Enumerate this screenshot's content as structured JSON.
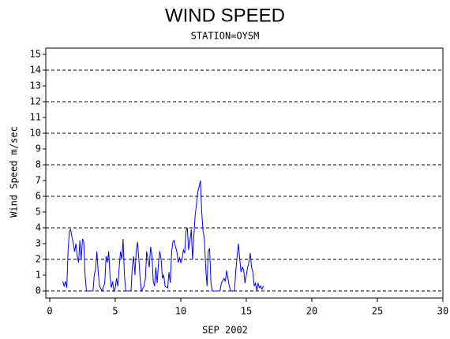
{
  "chart_data": {
    "type": "line",
    "title": "WIND SPEED",
    "subtitle": "STATION=OYSM",
    "x_label": "SEP 2002",
    "y_label": "Wind Speed m/sec",
    "xlim": [
      -0.3,
      30
    ],
    "xticks": [
      0,
      5,
      10,
      15,
      20,
      25,
      30
    ],
    "ylim": [
      -0.45,
      15.4
    ],
    "yticks": [
      0,
      1,
      2,
      3,
      4,
      5,
      6,
      7,
      8,
      9,
      10,
      11,
      12,
      13,
      14,
      15
    ],
    "ygrid": [
      0,
      2,
      4,
      6,
      8,
      10,
      12,
      14
    ],
    "series": [
      {
        "color": "#0000ff",
        "x": [
          1.0,
          1.1,
          1.2,
          1.3,
          1.4,
          1.5,
          1.6,
          1.7,
          1.8,
          1.9,
          2.0,
          2.1,
          2.2,
          2.3,
          2.4,
          2.5,
          2.6,
          2.7,
          2.8,
          3.3,
          3.4,
          3.5,
          3.6,
          3.7,
          3.8,
          4.0,
          4.2,
          4.3,
          4.4,
          4.5,
          4.6,
          4.7,
          4.8,
          4.9,
          5.0,
          5.1,
          5.2,
          5.3,
          5.4,
          5.5,
          5.6,
          5.7,
          5.8,
          6.2,
          6.3,
          6.4,
          6.5,
          6.6,
          6.7,
          6.8,
          6.9,
          7.0,
          7.2,
          7.3,
          7.4,
          7.5,
          7.6,
          7.7,
          7.8,
          7.9,
          8.0,
          8.1,
          8.2,
          8.3,
          8.4,
          8.5,
          8.6,
          8.7,
          8.8,
          9.0,
          9.1,
          9.2,
          9.3,
          9.4,
          9.5,
          9.6,
          9.7,
          9.8,
          9.9,
          10.0,
          10.1,
          10.2,
          10.3,
          10.4,
          10.5,
          10.6,
          10.7,
          10.8,
          10.9,
          11.0,
          11.1,
          11.2,
          11.3,
          11.4,
          11.5,
          11.6,
          11.7,
          11.8,
          11.9,
          12.0,
          12.1,
          12.2,
          12.3,
          12.4,
          13.0,
          13.1,
          13.3,
          13.4,
          13.5,
          13.6,
          13.7,
          13.8,
          14.1,
          14.2,
          14.3,
          14.4,
          14.5,
          14.6,
          14.7,
          14.8,
          14.9,
          15.0,
          15.1,
          15.2,
          15.3,
          15.4,
          15.5,
          15.6,
          15.7,
          15.8,
          15.9,
          16.0,
          16.1,
          16.2,
          16.3
        ],
        "values": [
          0.6,
          0.3,
          0.6,
          0.2,
          2.5,
          3.8,
          3.9,
          3.4,
          3.0,
          2.5,
          3.0,
          2.2,
          1.8,
          3.2,
          2.0,
          3.3,
          3.1,
          1.0,
          0,
          0,
          1.0,
          1.4,
          2.5,
          1.2,
          0.3,
          0,
          0.5,
          2.2,
          1.8,
          2.5,
          1.0,
          0.2,
          0.6,
          0,
          0.2,
          0.8,
          0.3,
          1.5,
          2.5,
          2.0,
          3.3,
          1.0,
          0,
          0,
          1.5,
          2.2,
          1.0,
          2.5,
          3.1,
          2.0,
          0.8,
          0,
          0.3,
          0.8,
          2.5,
          2.0,
          1.5,
          2.8,
          2.2,
          0.6,
          0.3,
          1.5,
          0.5,
          1.8,
          2.5,
          2.0,
          0.8,
          1.0,
          0.3,
          0.2,
          1.2,
          0.5,
          2.5,
          3.1,
          3.2,
          2.8,
          2.5,
          1.8,
          2.1,
          1.8,
          2.0,
          2.6,
          2.4,
          3.8,
          4.0,
          2.6,
          3.2,
          3.9,
          2.0,
          3.5,
          4.8,
          5.5,
          6.3,
          6.6,
          7.0,
          5.0,
          3.8,
          3.3,
          1.5,
          0.3,
          2.5,
          2.7,
          0.5,
          0,
          0,
          0.5,
          0.8,
          0.6,
          1.3,
          0.8,
          0.3,
          0,
          0,
          1.3,
          2.2,
          3.0,
          2.0,
          1.2,
          1.5,
          1.3,
          0.5,
          1.0,
          1.5,
          1.8,
          2.4,
          1.5,
          1.2,
          0.3,
          0.5,
          0,
          0.5,
          0.2,
          0.3,
          0.1,
          0.3
        ]
      }
    ]
  }
}
